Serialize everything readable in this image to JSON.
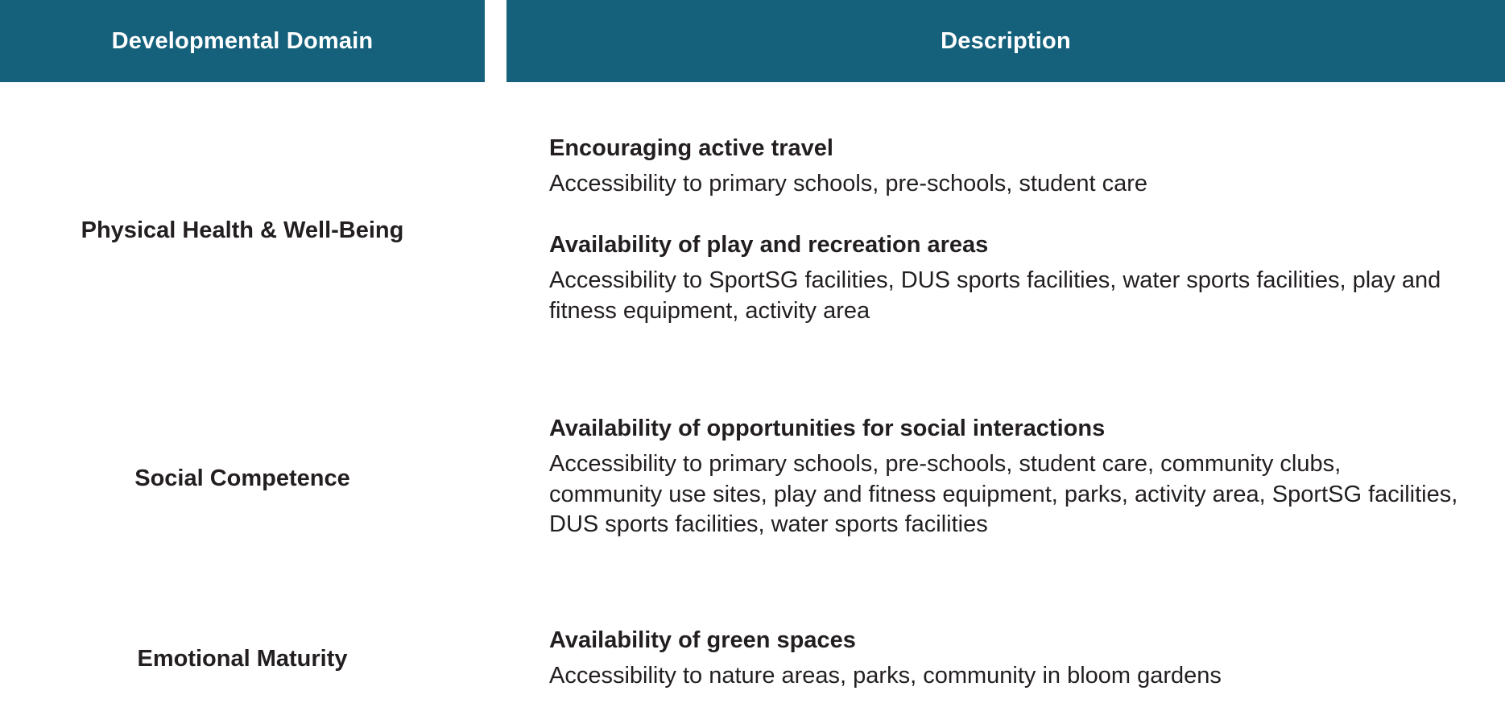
{
  "table": {
    "headers": {
      "domain": "Developmental Domain",
      "description": "Description"
    },
    "domains": [
      "Physical Health & Well-Being",
      "Social Competence",
      "Emotional Maturity"
    ],
    "descriptions": [
      {
        "heading": "Encouraging active travel",
        "text": "Accessibility to primary schools, pre-schools, student care"
      },
      {
        "heading": "Availability of play and recreation areas",
        "text": "Accessibility to SportSG facilities, DUS sports facilities, water sports facilities, play and fitness equipment, activity area"
      },
      {
        "heading": "Availability of opportunities for social interactions",
        "text": "Accessibility to primary schools, pre-schools, student care, community clubs, community use sites, play and fitness equipment, parks, activity area, SportSG facilities, DUS sports facilities, water sports facilities"
      },
      {
        "heading": "Availability of green spaces",
        "text": "Accessibility to nature areas, parks, community in bloom gardens"
      }
    ]
  },
  "colors": {
    "header_bg": "#15617c",
    "header_text": "#ffffff",
    "body_text": "#231f20"
  }
}
